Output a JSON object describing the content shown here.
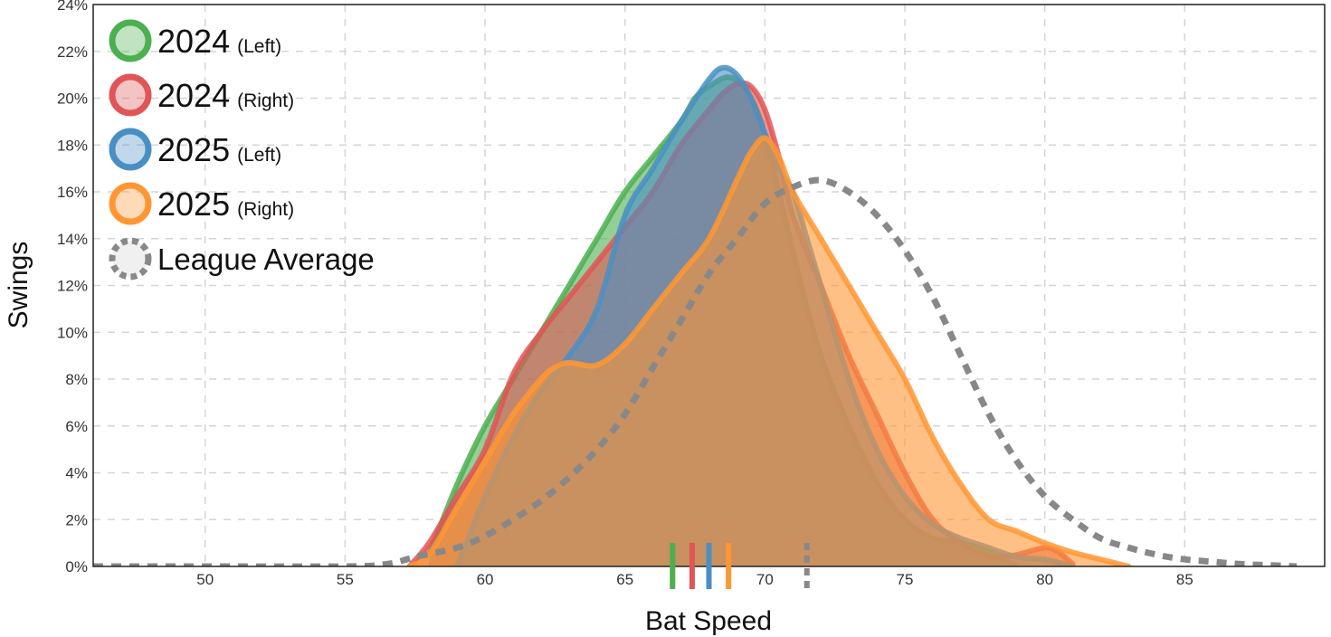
{
  "chart_data": {
    "type": "area",
    "title": "",
    "xlabel": "Bat Speed",
    "ylabel": "Swings",
    "xlim": [
      46,
      90
    ],
    "ylim": [
      0,
      24
    ],
    "y_tick_format": "percent",
    "x_ticks": [
      50,
      55,
      60,
      65,
      70,
      75,
      80,
      85
    ],
    "y_ticks": [
      0,
      2,
      4,
      6,
      8,
      10,
      12,
      14,
      16,
      18,
      20,
      22,
      24
    ],
    "grid": true,
    "legend_position": "top-left",
    "series": [
      {
        "name": "2024 (Left)",
        "year": "2024",
        "side": "(Left)",
        "color": "#4caf50",
        "mean": 66.7,
        "points": [
          [
            58,
            0.5
          ],
          [
            59,
            3.5
          ],
          [
            60,
            6
          ],
          [
            61,
            8
          ],
          [
            62,
            10
          ],
          [
            63,
            12
          ],
          [
            64,
            14
          ],
          [
            65,
            16
          ],
          [
            66,
            17.5
          ],
          [
            67,
            19
          ],
          [
            67.5,
            20
          ],
          [
            68,
            20.5
          ],
          [
            68.7,
            20.9
          ],
          [
            69.3,
            20.4
          ],
          [
            69.8,
            19.2
          ],
          [
            70.3,
            17
          ],
          [
            70.8,
            14.5
          ],
          [
            71.3,
            12
          ],
          [
            72,
            9
          ],
          [
            73,
            6
          ],
          [
            74,
            3.6
          ],
          [
            75,
            2
          ],
          [
            76,
            1.2
          ],
          [
            77,
            1
          ],
          [
            78,
            0.6
          ],
          [
            79,
            0
          ]
        ]
      },
      {
        "name": "2024 (Right)",
        "year": "2024",
        "side": "(Right)",
        "color": "#e05555",
        "mean": 67.4,
        "points": [
          [
            57.3,
            0
          ],
          [
            58,
            1
          ],
          [
            59,
            3
          ],
          [
            60,
            5
          ],
          [
            61,
            8.2
          ],
          [
            62,
            10
          ],
          [
            63,
            11.5
          ],
          [
            64,
            13
          ],
          [
            65,
            14.5
          ],
          [
            66,
            16
          ],
          [
            67,
            18
          ],
          [
            68,
            19.5
          ],
          [
            68.5,
            20.2
          ],
          [
            69,
            20.6
          ],
          [
            69.5,
            20.5
          ],
          [
            70,
            19.5
          ],
          [
            70.5,
            17.5
          ],
          [
            71,
            15
          ],
          [
            72,
            12
          ],
          [
            73,
            9
          ],
          [
            74,
            6.5
          ],
          [
            75,
            4
          ],
          [
            76,
            2
          ],
          [
            77,
            1
          ],
          [
            78,
            0.4
          ],
          [
            79,
            0.5
          ],
          [
            80,
            0.8
          ],
          [
            80.5,
            0.6
          ],
          [
            81,
            0.1
          ]
        ]
      },
      {
        "name": "2025 (Left)",
        "year": "2025",
        "side": "(Left)",
        "color": "#4a8fc4",
        "mean": 68.0,
        "points": [
          [
            59,
            0
          ],
          [
            60,
            3
          ],
          [
            61,
            5.5
          ],
          [
            62,
            7.5
          ],
          [
            63,
            9
          ],
          [
            64,
            11
          ],
          [
            65,
            15
          ],
          [
            66,
            17
          ],
          [
            67,
            19
          ],
          [
            68,
            20.8
          ],
          [
            68.5,
            21.3
          ],
          [
            69,
            21
          ],
          [
            69.5,
            20
          ],
          [
            70,
            18.5
          ],
          [
            70.5,
            17
          ],
          [
            71,
            16
          ],
          [
            71.5,
            14
          ],
          [
            72,
            12
          ],
          [
            73,
            8
          ],
          [
            74,
            5
          ],
          [
            75,
            3
          ],
          [
            76,
            1.8
          ],
          [
            77,
            1.2
          ],
          [
            78,
            0.8
          ],
          [
            79,
            0.4
          ],
          [
            80,
            0.3
          ],
          [
            81,
            0
          ]
        ]
      },
      {
        "name": "2025 (Right)",
        "year": "2025",
        "side": "(Right)",
        "color": "#ff9633",
        "mean": 68.7,
        "points": [
          [
            57.3,
            0
          ],
          [
            58,
            0.5
          ],
          [
            59,
            2.5
          ],
          [
            60,
            4.5
          ],
          [
            61,
            6.5
          ],
          [
            62,
            8
          ],
          [
            62.5,
            8.5
          ],
          [
            63,
            8.7
          ],
          [
            64,
            8.6
          ],
          [
            65,
            9.5
          ],
          [
            66,
            11
          ],
          [
            67,
            12.5
          ],
          [
            68,
            14
          ],
          [
            69,
            16.5
          ],
          [
            69.5,
            17.7
          ],
          [
            70,
            18.3
          ],
          [
            70.5,
            17.5
          ],
          [
            71,
            16
          ],
          [
            72,
            14
          ],
          [
            73,
            12
          ],
          [
            74,
            10
          ],
          [
            75,
            8
          ],
          [
            76,
            5.5
          ],
          [
            77,
            3.5
          ],
          [
            78,
            2
          ],
          [
            79,
            1.5
          ],
          [
            80,
            1
          ],
          [
            81,
            0.6
          ],
          [
            82,
            0.3
          ],
          [
            83,
            0
          ]
        ]
      }
    ],
    "reference": {
      "name": "League Average",
      "color": "#888888",
      "mean": 71.5,
      "points": [
        [
          46,
          0
        ],
        [
          50,
          0
        ],
        [
          55,
          0
        ],
        [
          56.5,
          0.1
        ],
        [
          57.5,
          0.4
        ],
        [
          59,
          0.8
        ],
        [
          60,
          1.3
        ],
        [
          61,
          2
        ],
        [
          62,
          2.8
        ],
        [
          63,
          3.8
        ],
        [
          64,
          5
        ],
        [
          65,
          6.5
        ],
        [
          66,
          8.5
        ],
        [
          67,
          10.5
        ],
        [
          68,
          12.5
        ],
        [
          69,
          14
        ],
        [
          70,
          15.5
        ],
        [
          71,
          16.2
        ],
        [
          72,
          16.5
        ],
        [
          73,
          16
        ],
        [
          74,
          15
        ],
        [
          75,
          13.5
        ],
        [
          76,
          11.5
        ],
        [
          77,
          9
        ],
        [
          78,
          6.5
        ],
        [
          79,
          4.5
        ],
        [
          80,
          3
        ],
        [
          81,
          2
        ],
        [
          82,
          1.2
        ],
        [
          83,
          0.8
        ],
        [
          84,
          0.5
        ],
        [
          85,
          0.3
        ],
        [
          86,
          0.2
        ],
        [
          87,
          0.1
        ],
        [
          88,
          0.05
        ],
        [
          89,
          0
        ]
      ]
    }
  }
}
